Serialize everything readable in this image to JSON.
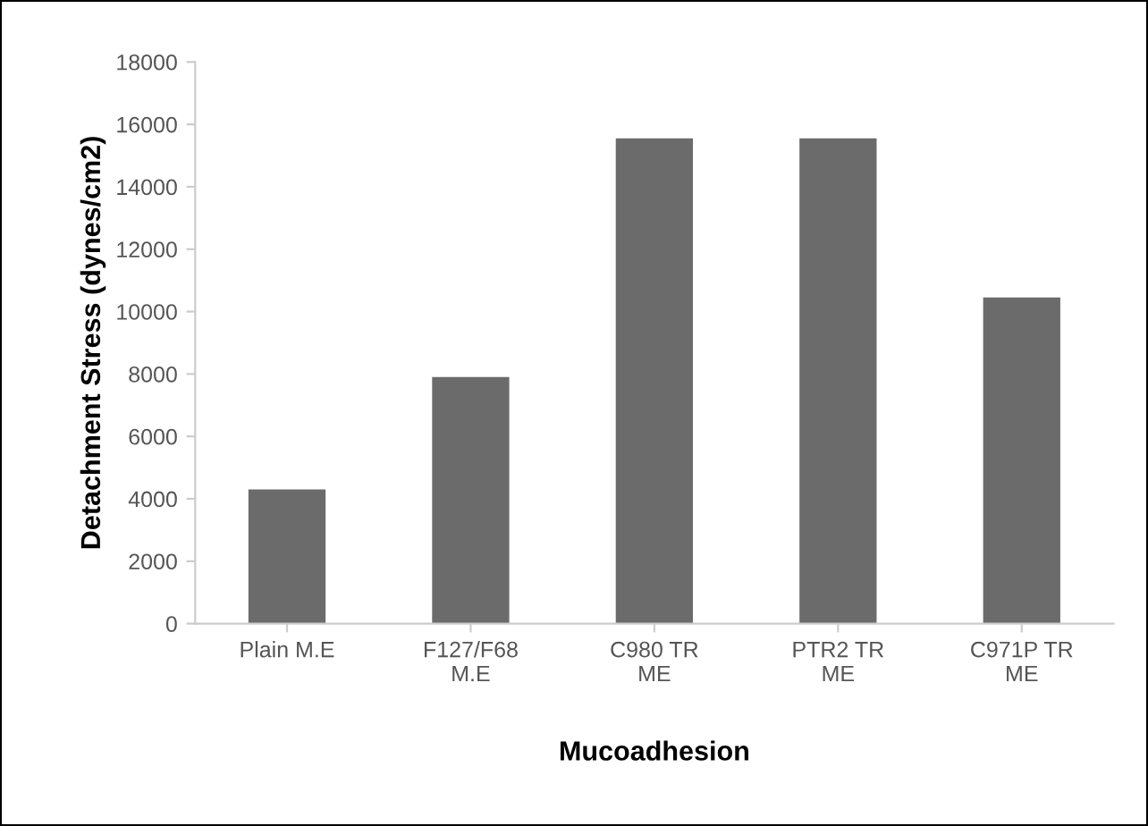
{
  "chart_data": {
    "type": "bar",
    "xlabel": "Mucoadhesion",
    "ylabel": "Detachment Stress (dynes/cm2)",
    "categories": [
      "Plain M.E",
      "F127/F68\nM.E",
      "C980 TR\nME",
      "PTR2 TR\nME",
      "C971P TR\nME"
    ],
    "values": [
      4300,
      7900,
      15550,
      15550,
      10450
    ],
    "color": "#6b6b6b",
    "ylim": [
      0,
      18000
    ],
    "yticks": [
      0,
      2000,
      4000,
      6000,
      8000,
      10000,
      12000,
      14000,
      16000,
      18000
    ],
    "grid": false,
    "legend": false
  }
}
